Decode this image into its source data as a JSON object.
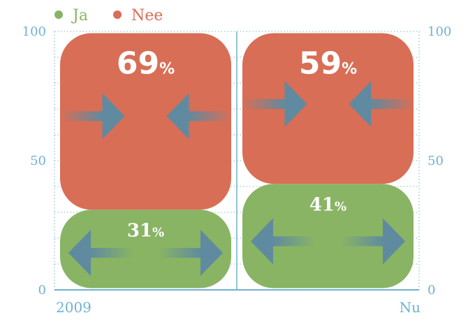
{
  "chart_data": {
    "type": "bar",
    "stacked": true,
    "categories": [
      "2009",
      "Nu"
    ],
    "series": [
      {
        "name": "Ja",
        "values": [
          31,
          41
        ],
        "labels": [
          "31%",
          "41%"
        ],
        "color": "#88b464",
        "arrows": "outward"
      },
      {
        "name": "Nee",
        "values": [
          69,
          59
        ],
        "labels": [
          "69%",
          "59%"
        ],
        "color": "#d86e56",
        "arrows": "inward"
      }
    ],
    "ylim": [
      0,
      100
    ],
    "yticks": [
      0,
      50,
      100
    ],
    "y_tick_labels": [
      "0",
      "50",
      "100"
    ],
    "grid": true,
    "legend_position": "top-left",
    "axis_color": "#6fb2d2",
    "arrow_color": "#5f8aa0",
    "title": "",
    "xlabel": "",
    "ylabel": ""
  }
}
